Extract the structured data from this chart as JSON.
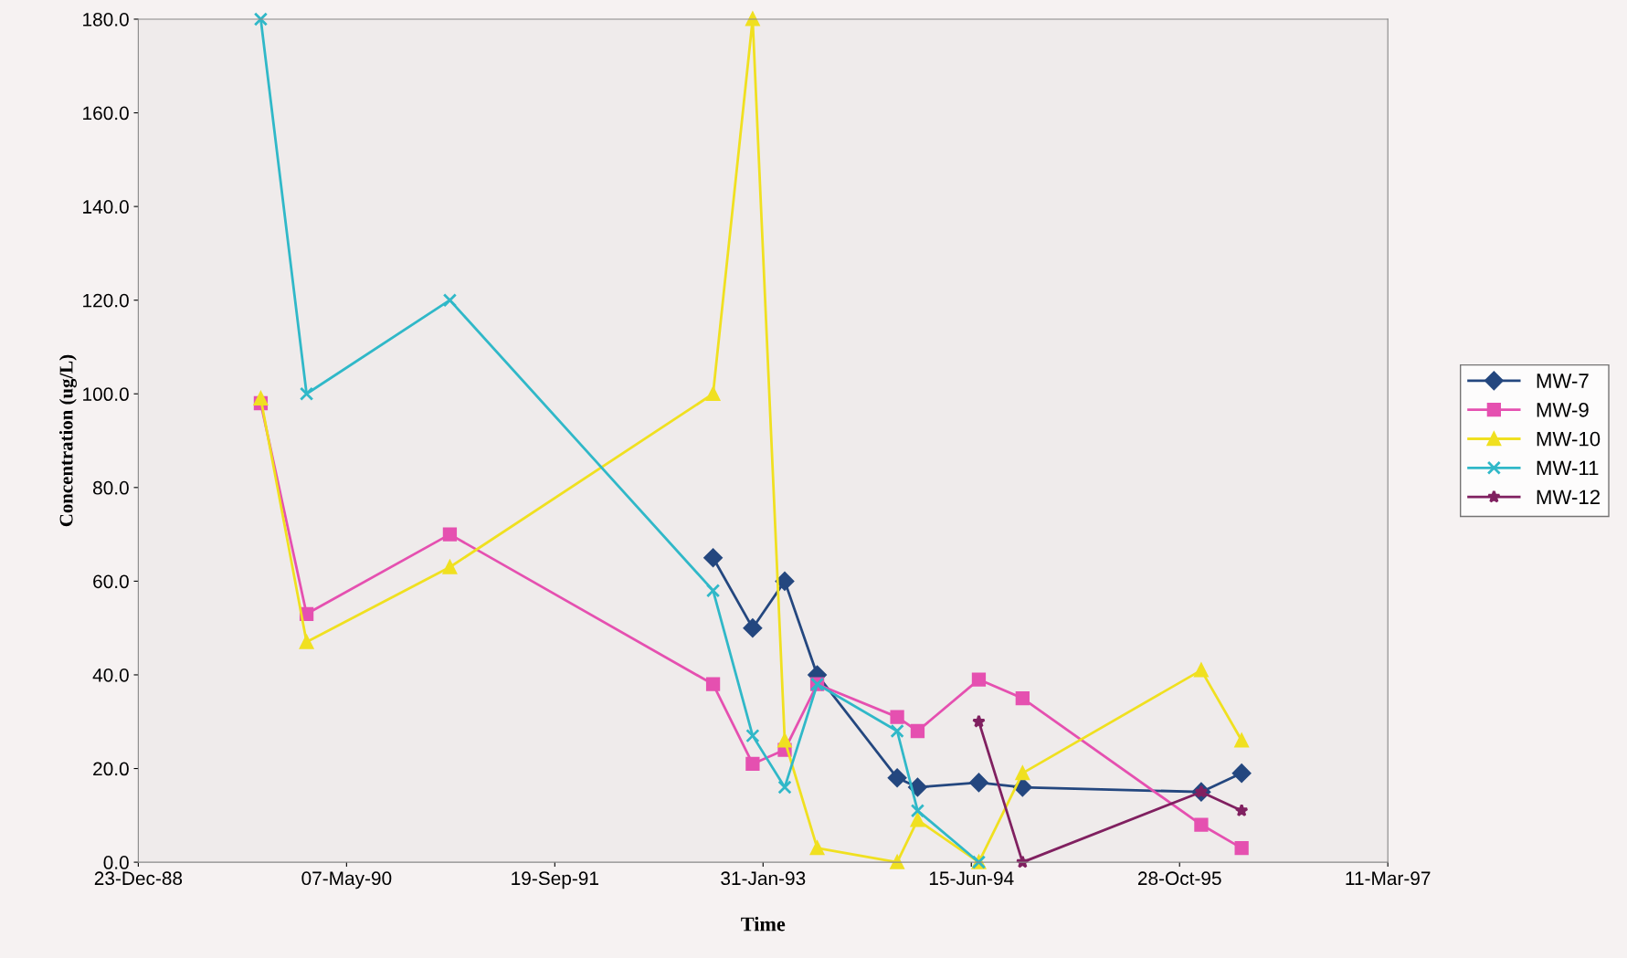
{
  "chart_data": {
    "type": "line",
    "xlabel": "Time",
    "ylabel": "Concentration (ug/L)",
    "xlim": [
      "1988-12-23",
      "1997-03-11"
    ],
    "ylim": [
      0,
      180
    ],
    "xticks": [
      {
        "value": "1988-12-23",
        "label": "23-Dec-88"
      },
      {
        "value": "1990-05-07",
        "label": "07-May-90"
      },
      {
        "value": "1991-09-19",
        "label": "19-Sep-91"
      },
      {
        "value": "1993-01-31",
        "label": "31-Jan-93"
      },
      {
        "value": "1994-06-15",
        "label": "15-Jun-94"
      },
      {
        "value": "1995-10-28",
        "label": "28-Oct-95"
      },
      {
        "value": "1997-03-11",
        "label": "11-Mar-97"
      }
    ],
    "yticks": [
      {
        "value": 0,
        "label": "0.0"
      },
      {
        "value": 20,
        "label": "20.0"
      },
      {
        "value": 40,
        "label": "40.0"
      },
      {
        "value": 60,
        "label": "60.0"
      },
      {
        "value": 80,
        "label": "80.0"
      },
      {
        "value": 100,
        "label": "100.0"
      },
      {
        "value": 120,
        "label": "120.0"
      },
      {
        "value": 140,
        "label": "140.0"
      },
      {
        "value": 160,
        "label": "160.0"
      },
      {
        "value": 180,
        "label": "180.0"
      }
    ],
    "grid": false,
    "legend": "right",
    "line_style": "solid",
    "series": [
      {
        "name": "MW-7",
        "color": "#24477f",
        "marker": "diamond",
        "x": [
          "1992-10-03",
          "1993-01-06",
          "1993-03-24",
          "1993-06-10",
          "1993-12-19",
          "1994-02-06",
          "1994-07-03",
          "1994-10-16",
          "1995-12-19",
          "1996-03-25"
        ],
        "values": [
          65,
          50,
          60,
          40,
          18,
          16,
          17,
          16,
          15,
          19
        ]
      },
      {
        "name": "MW-9",
        "color": "#e550b0",
        "marker": "square",
        "x": [
          "1989-10-13",
          "1990-01-31",
          "1991-01-10",
          "1992-10-03",
          "1993-01-06",
          "1993-03-24",
          "1993-06-10",
          "1993-12-19",
          "1994-02-06",
          "1994-07-03",
          "1994-10-16",
          "1995-12-19",
          "1996-03-25"
        ],
        "values": [
          98,
          53,
          70,
          38,
          21,
          24,
          38,
          31,
          28,
          39,
          35,
          8,
          3
        ]
      },
      {
        "name": "MW-10",
        "color": "#f0e020",
        "marker": "triangle",
        "x": [
          "1989-10-13",
          "1990-01-31",
          "1991-01-10",
          "1992-10-03",
          "1993-01-06",
          "1993-03-24",
          "1993-06-10",
          "1993-12-19",
          "1994-02-06",
          "1994-07-03",
          "1994-10-16",
          "1995-12-19",
          "1996-03-25"
        ],
        "values": [
          99,
          47,
          63,
          100,
          180,
          26,
          3,
          0,
          9,
          0,
          19,
          41,
          26
        ]
      },
      {
        "name": "MW-11",
        "color": "#30b8c8",
        "marker": "cross",
        "x": [
          "1989-10-13",
          "1990-01-31",
          "1991-01-10",
          "1992-10-03",
          "1993-01-06",
          "1993-03-24",
          "1993-06-10",
          "1993-12-19",
          "1994-02-06",
          "1994-07-03"
        ],
        "values": [
          180,
          100,
          120,
          58,
          27,
          16,
          38,
          28,
          11,
          0
        ]
      },
      {
        "name": "MW-12",
        "color": "#802060",
        "marker": "star",
        "x": [
          "1994-07-03",
          "1994-10-16",
          "1995-12-19",
          "1996-03-25"
        ],
        "values": [
          30,
          0,
          15,
          11
        ]
      }
    ]
  }
}
